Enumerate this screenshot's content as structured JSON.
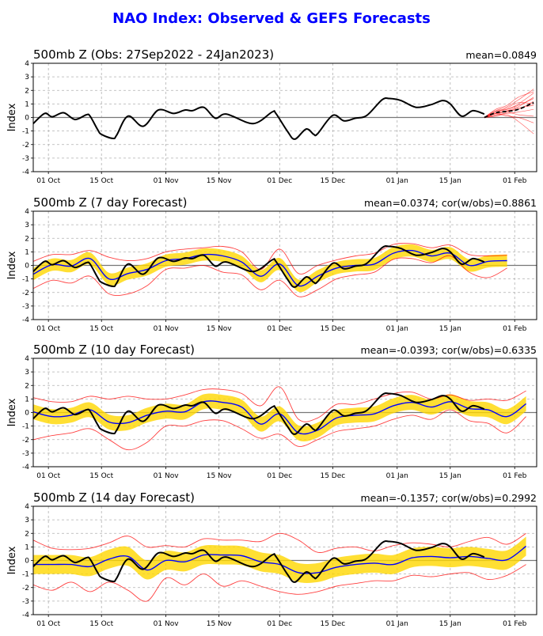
{
  "chart_data": {
    "title": "NAO Index: Observed & GEFS Forecasts",
    "colors": {
      "title": "#0000ff",
      "observed": "#000000",
      "ens_mean": "#0000ff",
      "band": "#ffd700",
      "minmax": "#ff0000",
      "members": "#ff0000",
      "grid": "#b0b0b0"
    },
    "xlim": [
      "2022-09-27",
      "2023-02-06"
    ],
    "ylim": [
      -4,
      4
    ],
    "yticks": [
      -4,
      -3,
      -2,
      -1,
      0,
      1,
      2,
      3,
      4
    ],
    "xticks": [
      {
        "date": "2022-10-01",
        "label": "01 Oct"
      },
      {
        "date": "2022-10-15",
        "label": "15 Oct"
      },
      {
        "date": "2022-11-01",
        "label": "01 Nov"
      },
      {
        "date": "2022-11-15",
        "label": "15 Nov"
      },
      {
        "date": "2022-12-01",
        "label": "01 Dec"
      },
      {
        "date": "2022-12-15",
        "label": "15 Dec"
      },
      {
        "date": "2023-01-01",
        "label": "01 Jan"
      },
      {
        "date": "2023-01-15",
        "label": "15 Jan"
      },
      {
        "date": "2023-02-01",
        "label": "01 Feb"
      }
    ],
    "observed": [
      [
        "2022-09-27",
        -0.45
      ],
      [
        "2022-09-30",
        0.3
      ],
      [
        "2022-10-02",
        0.05
      ],
      [
        "2022-10-05",
        0.35
      ],
      [
        "2022-10-08",
        -0.15
      ],
      [
        "2022-10-11",
        0.2
      ],
      [
        "2022-10-12",
        0.1
      ],
      [
        "2022-10-14",
        -0.9
      ],
      [
        "2022-10-15",
        -1.25
      ],
      [
        "2022-10-18",
        -1.55
      ],
      [
        "2022-10-19",
        -1.3
      ],
      [
        "2022-10-22",
        0.1
      ],
      [
        "2022-10-26",
        -0.65
      ],
      [
        "2022-10-30",
        0.55
      ],
      [
        "2022-11-03",
        0.3
      ],
      [
        "2022-11-06",
        0.55
      ],
      [
        "2022-11-08",
        0.5
      ],
      [
        "2022-11-11",
        0.75
      ],
      [
        "2022-11-14",
        -0.05
      ],
      [
        "2022-11-17",
        0.25
      ],
      [
        "2022-11-24",
        -0.45
      ],
      [
        "2022-11-29",
        0.4
      ],
      [
        "2022-11-30",
        0.3
      ],
      [
        "2022-12-03",
        -1.0
      ],
      [
        "2022-12-05",
        -1.6
      ],
      [
        "2022-12-08",
        -0.85
      ],
      [
        "2022-12-10",
        -1.25
      ],
      [
        "2022-12-11",
        -1.2
      ],
      [
        "2022-12-15",
        0.15
      ],
      [
        "2022-12-18",
        -0.25
      ],
      [
        "2022-12-21",
        -0.05
      ],
      [
        "2022-12-24",
        0.15
      ],
      [
        "2022-12-28",
        1.3
      ],
      [
        "2022-12-30",
        1.4
      ],
      [
        "2023-01-02",
        1.25
      ],
      [
        "2023-01-06",
        0.75
      ],
      [
        "2023-01-10",
        0.95
      ],
      [
        "2023-01-13",
        1.25
      ],
      [
        "2023-01-15",
        1.0
      ],
      [
        "2023-01-18",
        0.1
      ],
      [
        "2023-01-21",
        0.5
      ],
      [
        "2023-01-24",
        0.25
      ]
    ],
    "sample_dates": [
      "2022-09-27",
      "2022-10-02",
      "2022-10-07",
      "2022-10-12",
      "2022-10-17",
      "2022-10-22",
      "2022-10-27",
      "2022-11-01",
      "2022-11-06",
      "2022-11-11",
      "2022-11-16",
      "2022-11-21",
      "2022-11-26",
      "2022-12-01",
      "2022-12-06",
      "2022-12-11",
      "2022-12-16",
      "2022-12-21",
      "2022-12-26",
      "2022-12-31",
      "2023-01-05",
      "2023-01-10",
      "2023-01-15",
      "2023-01-20",
      "2023-01-25",
      "2023-01-30",
      "2023-02-04"
    ],
    "panels": [
      {
        "type": "line",
        "title": "500mb Z (Obs: 27Sep2022 - 24Jan2023)",
        "stat": "mean=0.0849",
        "ylabel": "Index",
        "forecast_dates": [
          "2023-01-24",
          "2023-01-27",
          "2023-01-30",
          "2023-02-02",
          "2023-02-06"
        ],
        "ens_mean": [
          0,
          0.35,
          0.45,
          0.6,
          1.1
        ],
        "ens_members": [
          [
            0,
            0.3,
            0.5,
            0.8,
            1.5
          ],
          [
            0,
            0.5,
            0.8,
            1.3,
            2.1
          ],
          [
            0,
            0.2,
            0.3,
            0.4,
            0.6
          ],
          [
            0,
            0.4,
            0.6,
            1.0,
            1.8
          ],
          [
            0,
            0.1,
            0.2,
            -0.3,
            -1.2
          ],
          [
            0,
            0.3,
            0.1,
            0.0,
            -0.4
          ],
          [
            0,
            0.6,
            0.9,
            1.5,
            1.9
          ],
          [
            0,
            0.2,
            0.5,
            0.6,
            1.2
          ],
          [
            0,
            0.4,
            0.7,
            1.1,
            1.0
          ],
          [
            0,
            0.3,
            0.4,
            0.2,
            0.1
          ],
          [
            0,
            0.5,
            0.6,
            0.9,
            1.4
          ],
          [
            0,
            0.1,
            0.4,
            0.7,
            0.9
          ]
        ]
      },
      {
        "type": "line",
        "title": "500mb Z (7 day Forecast)",
        "stat": "mean=0.0374; cor(w/obs)=0.8861",
        "ylabel": "Index",
        "mean": [
          -0.65,
          0.05,
          -0.05,
          0.5,
          -1.0,
          -0.6,
          -0.3,
          0.35,
          0.5,
          0.8,
          0.7,
          0.25,
          -0.8,
          0.1,
          -1.5,
          -0.8,
          -0.2,
          0.0,
          0.1,
          0.9,
          1.1,
          0.7,
          0.9,
          0.0,
          0.3,
          0.35,
          null
        ],
        "band_lower": [
          -1.1,
          -0.4,
          -0.5,
          0.05,
          -1.45,
          -1.05,
          -0.75,
          -0.1,
          0.05,
          0.35,
          0.25,
          -0.2,
          -1.25,
          -0.35,
          -1.95,
          -1.25,
          -0.65,
          -0.45,
          -0.35,
          0.45,
          0.65,
          0.25,
          0.45,
          -0.45,
          -0.15,
          -0.1,
          null
        ],
        "band_upper": [
          -0.2,
          0.5,
          0.4,
          0.95,
          -0.55,
          -0.15,
          0.15,
          0.8,
          0.95,
          1.25,
          1.15,
          0.7,
          -0.35,
          0.55,
          -1.05,
          -0.35,
          0.25,
          0.45,
          0.55,
          1.35,
          1.55,
          1.15,
          1.35,
          0.45,
          0.75,
          0.8,
          null
        ],
        "max": [
          0.3,
          0.8,
          0.8,
          1.1,
          0.6,
          0.35,
          0.5,
          1.0,
          1.2,
          1.3,
          1.4,
          1.0,
          -0.3,
          1.2,
          -0.6,
          0.0,
          0.4,
          0.7,
          0.9,
          1.55,
          1.6,
          1.3,
          1.5,
          0.8,
          0.7,
          0.75,
          null
        ],
        "min": [
          -1.7,
          -1.1,
          -1.3,
          -0.8,
          -2.1,
          -2.1,
          -1.5,
          -0.3,
          -0.2,
          0.0,
          -0.5,
          -0.7,
          -1.8,
          -1.1,
          -2.3,
          -1.8,
          -1.0,
          -0.7,
          -0.5,
          0.45,
          0.5,
          0.2,
          0.7,
          -0.5,
          -0.9,
          -0.2,
          null
        ]
      },
      {
        "type": "line",
        "title": "500mb Z (10 day Forecast)",
        "stat": "mean=-0.0393; cor(w/obs)=0.6335",
        "ylabel": "Index",
        "mean": [
          0.05,
          -0.3,
          -0.2,
          0.2,
          -0.7,
          -0.75,
          -0.2,
          0.1,
          0.05,
          0.8,
          0.75,
          0.4,
          -0.85,
          -0.1,
          -1.5,
          -1.3,
          -0.4,
          -0.2,
          -0.1,
          0.5,
          0.75,
          0.4,
          0.8,
          0.3,
          0.2,
          -0.3,
          0.65
        ],
        "band_lower": [
          -0.5,
          -0.85,
          -0.75,
          -0.35,
          -1.25,
          -1.3,
          -0.75,
          -0.45,
          -0.5,
          0.25,
          0.2,
          -0.15,
          -1.4,
          -0.65,
          -2.05,
          -1.85,
          -0.95,
          -0.75,
          -0.65,
          -0.05,
          0.2,
          -0.15,
          0.25,
          -0.25,
          -0.35,
          -0.85,
          0.1
        ],
        "band_upper": [
          0.6,
          0.25,
          0.35,
          0.75,
          -0.15,
          -0.2,
          0.35,
          0.65,
          0.6,
          1.35,
          1.3,
          0.95,
          -0.3,
          0.45,
          -0.95,
          -0.75,
          0.15,
          0.35,
          0.45,
          1.05,
          1.3,
          0.95,
          1.35,
          0.85,
          0.75,
          0.25,
          1.2
        ],
        "max": [
          1.1,
          0.8,
          0.8,
          1.2,
          1.0,
          1.2,
          1.0,
          1.0,
          1.3,
          1.7,
          1.7,
          1.4,
          0.5,
          1.9,
          -0.5,
          -0.4,
          0.6,
          0.6,
          1.0,
          1.4,
          1.5,
          1.0,
          1.3,
          0.9,
          1.0,
          0.9,
          1.6
        ],
        "min": [
          -2.0,
          -1.7,
          -1.5,
          -1.2,
          -2.0,
          -2.75,
          -2.2,
          -1.0,
          -1.0,
          -0.6,
          -0.6,
          -1.2,
          -1.9,
          -1.6,
          -2.5,
          -2.0,
          -1.4,
          -1.2,
          -1.0,
          -0.5,
          -0.2,
          -0.5,
          0.2,
          -0.6,
          -0.8,
          -1.5,
          -0.3
        ]
      },
      {
        "type": "line",
        "title": "500mb Z (14 day Forecast)",
        "stat": "mean=-0.1357; cor(w/obs)=0.2992",
        "ylabel": "Index",
        "mean": [
          -0.3,
          -0.3,
          -0.3,
          -0.45,
          0.1,
          0.3,
          -0.7,
          0.0,
          -0.1,
          0.4,
          0.4,
          0.35,
          -0.1,
          -0.3,
          -0.9,
          -0.9,
          -0.5,
          -0.3,
          -0.2,
          -0.3,
          0.2,
          0.3,
          0.2,
          0.3,
          0.15,
          0.05,
          1.05
        ],
        "band_lower": [
          -1.0,
          -1.0,
          -1.0,
          -1.15,
          -0.6,
          -0.4,
          -1.4,
          -0.7,
          -0.8,
          -0.3,
          -0.3,
          -0.35,
          -0.8,
          -1.0,
          -1.6,
          -1.6,
          -1.2,
          -1.0,
          -0.9,
          -1.0,
          -0.5,
          -0.4,
          -0.5,
          -0.4,
          -0.55,
          -0.65,
          0.35
        ],
        "band_upper": [
          0.4,
          0.4,
          0.4,
          0.25,
          0.8,
          1.0,
          0.0,
          0.7,
          0.6,
          1.1,
          1.1,
          1.05,
          0.6,
          0.4,
          -0.2,
          -0.2,
          0.2,
          0.4,
          0.5,
          0.4,
          0.9,
          1.0,
          0.9,
          1.0,
          0.85,
          0.75,
          1.75
        ],
        "max": [
          1.5,
          0.9,
          0.8,
          0.9,
          1.3,
          1.8,
          1.0,
          1.1,
          1.0,
          1.6,
          1.5,
          1.5,
          1.4,
          2.0,
          1.5,
          0.6,
          0.9,
          1.0,
          0.7,
          1.1,
          1.3,
          1.2,
          1.0,
          1.4,
          1.7,
          1.2,
          2.0
        ],
        "min": [
          -1.8,
          -2.2,
          -1.6,
          -2.3,
          -1.6,
          -2.2,
          -3.0,
          -1.3,
          -1.8,
          -1.0,
          -1.9,
          -1.5,
          -1.9,
          -2.3,
          -2.5,
          -2.3,
          -1.9,
          -1.7,
          -1.5,
          -1.5,
          -1.1,
          -1.2,
          -1.0,
          -0.9,
          -1.4,
          -1.1,
          -0.3
        ]
      }
    ]
  }
}
